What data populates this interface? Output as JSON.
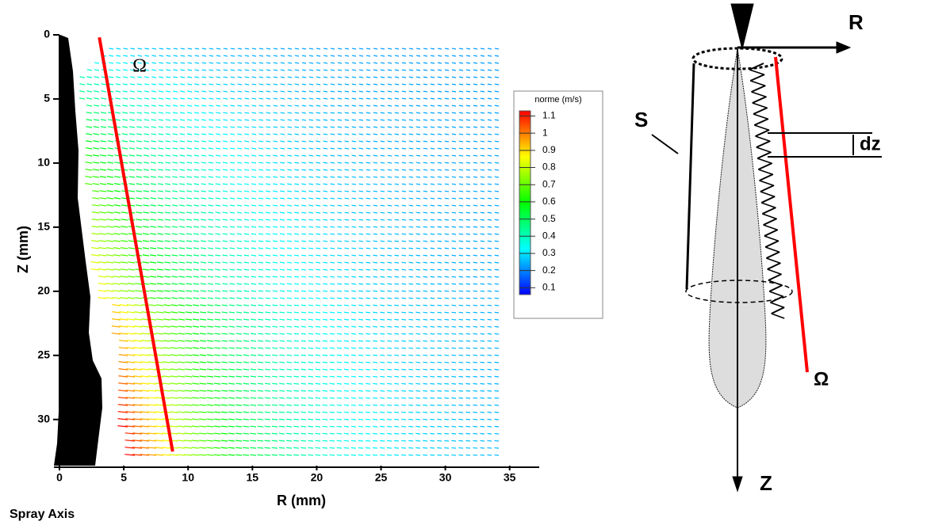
{
  "chart_data": {
    "type": "quiver",
    "xlabel": "R (mm)",
    "ylabel": "Z (mm)",
    "xlim": [
      0,
      37.3
    ],
    "ylim": [
      0,
      33.6
    ],
    "y_inverted": true,
    "xticks": [
      0,
      5,
      10,
      15,
      20,
      25,
      30,
      35
    ],
    "yticks": [
      0,
      5,
      10,
      15,
      20,
      25,
      30
    ],
    "annotation": "Ω",
    "lines": [
      {
        "x": [
          3.1,
          8.8
        ],
        "y": [
          0.2,
          32.5
        ],
        "color": "#ff0000"
      }
    ],
    "colorbar": {
      "title": "norme (m/s)",
      "clim": [
        0.06,
        1.13
      ],
      "ticks": [
        1.1,
        1,
        0.9,
        0.8,
        0.7,
        0.6,
        0.5,
        0.4,
        0.3,
        0.2,
        0.1
      ],
      "colors": [
        "#0000ff",
        "#00ffff",
        "#00ff00",
        "#ffff00",
        "#ff0000"
      ]
    },
    "caption": "Spray Axis"
  },
  "diagram": {
    "labels": {
      "r": "R",
      "z": "Z",
      "s": "S",
      "dz": "dz",
      "omega": "Ω"
    }
  }
}
